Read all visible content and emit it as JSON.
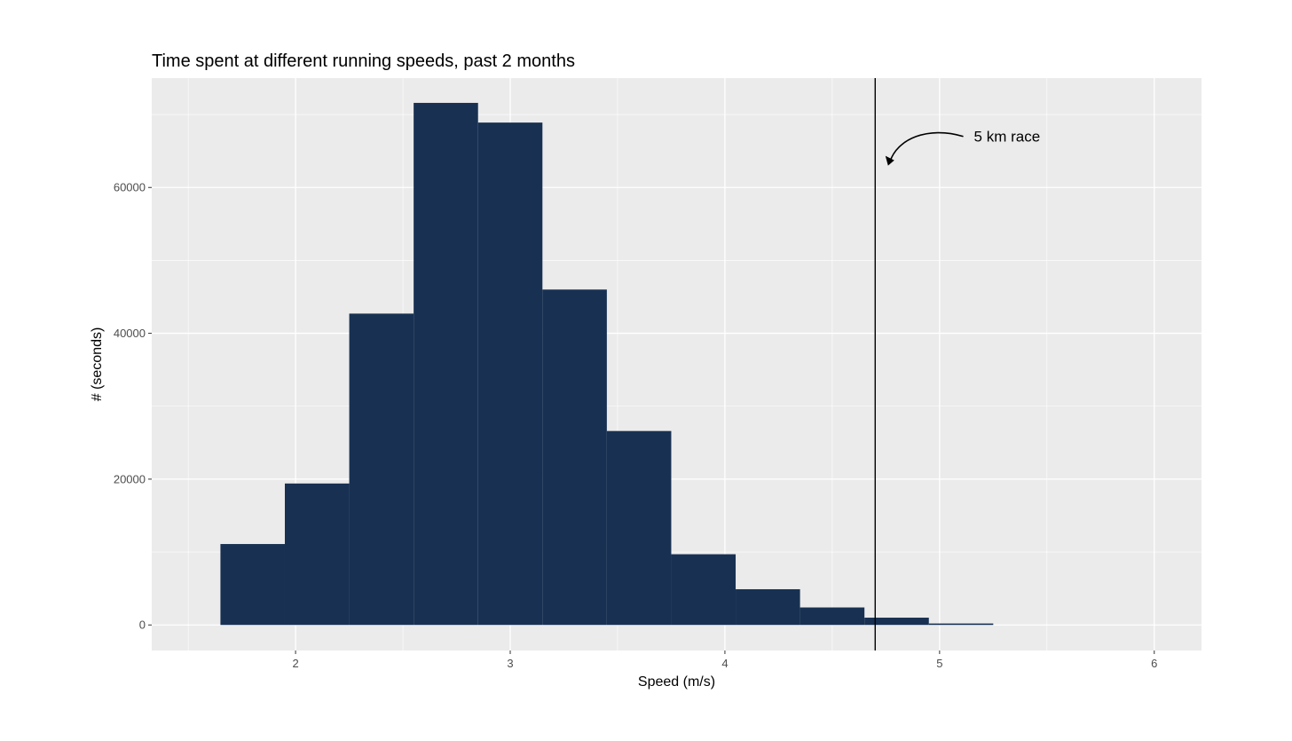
{
  "chart_data": {
    "type": "bar",
    "title": "Time spent at different running speeds, past 2 months",
    "xlabel": "Speed (m/s)",
    "ylabel": "# (seconds)",
    "xlim": [
      1.33,
      6.22
    ],
    "ylim": [
      -3500,
      75000
    ],
    "xticks": [
      2,
      3,
      4,
      5,
      6
    ],
    "yticks": [
      0,
      20000,
      40000,
      60000
    ],
    "xtick_labels": [
      "2",
      "3",
      "4",
      "5",
      "6"
    ],
    "ytick_labels": [
      "0",
      "20000",
      "40000",
      "60000"
    ],
    "bin_width": 0.3,
    "bins": [
      {
        "x": 1.8,
        "value": 11100
      },
      {
        "x": 2.1,
        "value": 19400
      },
      {
        "x": 2.4,
        "value": 42700
      },
      {
        "x": 2.7,
        "value": 71600
      },
      {
        "x": 3.0,
        "value": 68900
      },
      {
        "x": 3.3,
        "value": 46000
      },
      {
        "x": 3.6,
        "value": 26600
      },
      {
        "x": 3.9,
        "value": 9700
      },
      {
        "x": 4.2,
        "value": 4900
      },
      {
        "x": 4.5,
        "value": 2400
      },
      {
        "x": 4.8,
        "value": 1000
      },
      {
        "x": 5.1,
        "value": 200
      }
    ],
    "bar_color": "#183153",
    "panel_background": "#ebebeb",
    "grid": true,
    "vline": {
      "x": 4.7,
      "color": "#000000"
    },
    "annotation": {
      "text": "5 km race",
      "x": 5.16,
      "y": 67000,
      "arrow_to": [
        4.76,
        63000
      ]
    }
  }
}
